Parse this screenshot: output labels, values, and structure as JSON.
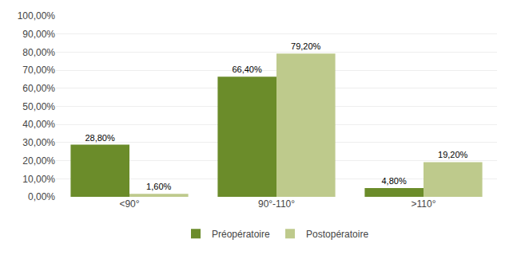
{
  "chart_data": {
    "type": "bar",
    "categories": [
      "<90°",
      "90°-110°",
      ">110°"
    ],
    "series": [
      {
        "name": "Préopératoire",
        "color": "#6B8C2A",
        "values": [
          28.8,
          66.4,
          4.8
        ],
        "value_labels": [
          "28,80%",
          "66,40%",
          "4,80%"
        ]
      },
      {
        "name": "Postopératoire",
        "color": "#BECA8C",
        "values": [
          1.6,
          79.2,
          19.2
        ],
        "value_labels": [
          "1,60%",
          "79,20%",
          "19,20%"
        ]
      }
    ],
    "ylim": [
      0,
      100
    ],
    "yticks": [
      {
        "value": 0,
        "label": "0,00%"
      },
      {
        "value": 10,
        "label": "10,00%"
      },
      {
        "value": 20,
        "label": "20,00%"
      },
      {
        "value": 30,
        "label": "30,00%"
      },
      {
        "value": 40,
        "label": "40,00%"
      },
      {
        "value": 50,
        "label": "50,00%"
      },
      {
        "value": 60,
        "label": "60,00%"
      },
      {
        "value": 70,
        "label": "70,00%"
      },
      {
        "value": 80,
        "label": "80,00%"
      },
      {
        "value": 90,
        "label": "90,00%"
      },
      {
        "value": 100,
        "label": "100,00%"
      }
    ],
    "grid": true,
    "legend": "bottom",
    "data_labels": true
  }
}
